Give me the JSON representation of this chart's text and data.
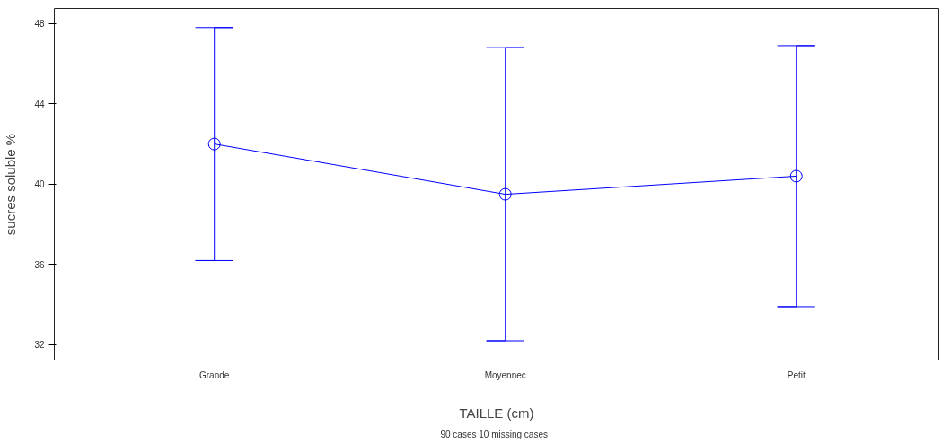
{
  "chart_data": {
    "type": "line",
    "xlabel": "TAILLE (cm)",
    "ylabel": "sucres soluble %",
    "categories": [
      "Grande",
      "Moyennec",
      "Petit"
    ],
    "series": [
      {
        "color": "#0000ff",
        "values": [
          42.0,
          39.5,
          40.4
        ],
        "errors": [
          [
            36.2,
            47.8
          ],
          [
            32.2,
            46.8
          ],
          [
            33.9,
            46.9
          ]
        ]
      }
    ],
    "ylim": [
      31.24,
      48.75
    ],
    "yticks": [
      32,
      36,
      40,
      44,
      48
    ],
    "grid": false,
    "marker": "circle",
    "line_style": "solid",
    "annotations": [
      "90 cases   10 missing cases"
    ]
  }
}
